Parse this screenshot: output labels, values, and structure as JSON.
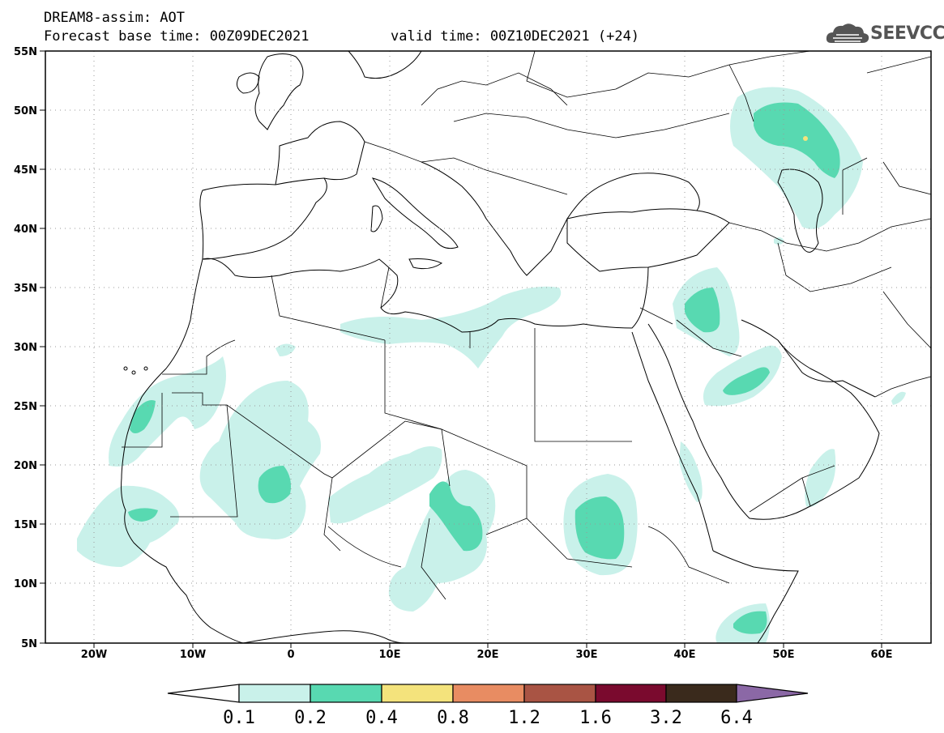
{
  "title": {
    "line1": "DREAM8-assim: AOT",
    "base": "Forecast base time: 00Z09DEC2021",
    "valid": "valid time: 00Z10DEC2021 (+24)"
  },
  "logo": {
    "text": "SEEVCCC",
    "icon": "cloud-icon"
  },
  "map": {
    "variable": "AOT",
    "lon_range": [
      -25,
      65
    ],
    "lat_range": [
      5,
      55
    ],
    "lat_labels": [
      "55N",
      "50N",
      "45N",
      "40N",
      "35N",
      "30N",
      "25N",
      "20N",
      "15N",
      "10N",
      "5N"
    ],
    "lon_labels": [
      "20W",
      "10W",
      "0",
      "10E",
      "20E",
      "30E",
      "40E",
      "50E",
      "60E"
    ],
    "gridlines": "dotted"
  },
  "colorbar": {
    "labels": [
      "0.1",
      "0.2",
      "0.4",
      "0.8",
      "1.2",
      "1.6",
      "3.2",
      "6.4"
    ],
    "colors": [
      "#ffffff",
      "#c9f1ea",
      "#58d9b1",
      "#f4e37c",
      "#e88c62",
      "#a95444",
      "#7a0a2e",
      "#3a2a1c",
      "#8b68a6"
    ]
  },
  "colors": {
    "level1": "#c9f1ea",
    "level2": "#58d9b1",
    "level3": "#f4e37c"
  }
}
